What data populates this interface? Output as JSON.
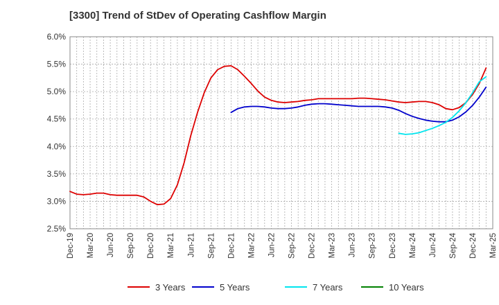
{
  "chart_data": {
    "type": "line",
    "title": "[3300]  Trend of StDev of Operating Cashflow Margin",
    "xlabel": "",
    "ylabel": "",
    "ylim": [
      2.5,
      6.0
    ],
    "y_ticks": [
      "2.5%",
      "3.0%",
      "3.5%",
      "4.0%",
      "4.5%",
      "5.0%",
      "5.5%",
      "6.0%"
    ],
    "x_ticks": [
      "Dec-19",
      "Mar-20",
      "Jun-20",
      "Sep-20",
      "Dec-20",
      "Mar-21",
      "Jun-21",
      "Sep-21",
      "Dec-21",
      "Mar-22",
      "Jun-22",
      "Sep-22",
      "Dec-22",
      "Mar-23",
      "Jun-23",
      "Sep-23",
      "Dec-23",
      "Mar-24",
      "Jun-24",
      "Sep-24",
      "Dec-24",
      "Mar-25"
    ],
    "grid": true,
    "legend_position": "bottom",
    "series": [
      {
        "name": "3 Years",
        "color": "#dd0000",
        "start_index": 0,
        "values": [
          3.18,
          3.13,
          3.12,
          3.13,
          3.15,
          3.15,
          3.12,
          3.11,
          3.11,
          3.11,
          3.11,
          3.08,
          3.0,
          2.94,
          2.95,
          3.05,
          3.3,
          3.7,
          4.2,
          4.62,
          4.98,
          5.25,
          5.4,
          5.46,
          5.47,
          5.4,
          5.28,
          5.15,
          5.01,
          4.9,
          4.84,
          4.81,
          4.8,
          4.81,
          4.82,
          4.84,
          4.85,
          4.87,
          4.87,
          4.87,
          4.87,
          4.87,
          4.87,
          4.88,
          4.88,
          4.87,
          4.86,
          4.85,
          4.83,
          4.81,
          4.8,
          4.81,
          4.82,
          4.82,
          4.8,
          4.76,
          4.69,
          4.67,
          4.71,
          4.8,
          4.95,
          5.15,
          5.43
        ]
      },
      {
        "name": "5 Years",
        "color": "#0000cc",
        "start_index": 24,
        "values": [
          4.62,
          4.69,
          4.72,
          4.73,
          4.73,
          4.72,
          4.7,
          4.69,
          4.69,
          4.7,
          4.72,
          4.75,
          4.77,
          4.78,
          4.78,
          4.77,
          4.76,
          4.75,
          4.74,
          4.73,
          4.73,
          4.73,
          4.73,
          4.72,
          4.7,
          4.66,
          4.6,
          4.55,
          4.51,
          4.48,
          4.46,
          4.45,
          4.45,
          4.48,
          4.54,
          4.63,
          4.75,
          4.9,
          5.08
        ]
      },
      {
        "name": "7 Years",
        "color": "#00e5ee",
        "start_index": 49,
        "values": [
          4.24,
          4.22,
          4.23,
          4.25,
          4.29,
          4.33,
          4.38,
          4.44,
          4.53,
          4.65,
          4.8,
          4.98,
          5.18,
          5.27
        ]
      },
      {
        "name": "10 Years",
        "color": "#008000",
        "start_index": 0,
        "values": []
      }
    ]
  }
}
